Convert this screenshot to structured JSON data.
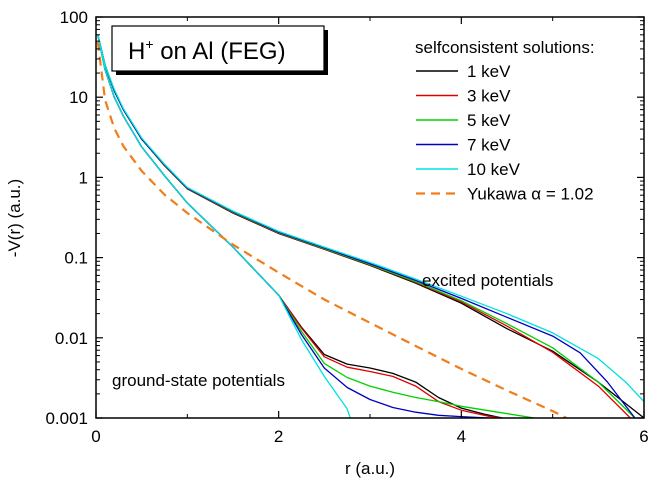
{
  "chart_data": {
    "type": "line",
    "title": "",
    "annotation_box": {
      "main": "H",
      "superscript": "+",
      "rest": " on Al (FEG)"
    },
    "xlabel": "r (a.u.)",
    "ylabel": "-V(r) (a.u.)",
    "xlim": [
      0,
      6
    ],
    "ylim": [
      0.001,
      100
    ],
    "yscale": "log",
    "x_ticks": [
      0,
      2,
      4,
      6
    ],
    "x_tick_labels": [
      "0",
      "2",
      "4",
      "6"
    ],
    "y_ticks": [
      100,
      10,
      1,
      0.1,
      0.01,
      0.001
    ],
    "y_tick_labels": [
      "100",
      "10",
      "1",
      "0.1",
      "0.01",
      "0.001"
    ],
    "grid": false,
    "legend_title": "selfconsistent solutions:",
    "legend_position": "top-right",
    "annotations": [
      {
        "text": "excited potentials"
      },
      {
        "text": "ground-state potentials"
      }
    ],
    "series": [
      {
        "name": "1 keV",
        "color": "#000000",
        "dash": false,
        "excited": [
          [
            0.02,
            60
          ],
          [
            0.1,
            25
          ],
          [
            0.2,
            12
          ],
          [
            0.3,
            7
          ],
          [
            0.5,
            3
          ],
          [
            0.75,
            1.4
          ],
          [
            1,
            0.72
          ],
          [
            1.5,
            0.36
          ],
          [
            2,
            0.2
          ],
          [
            2.5,
            0.127
          ],
          [
            3,
            0.08
          ],
          [
            3.5,
            0.048
          ],
          [
            4,
            0.027
          ],
          [
            4.5,
            0.013
          ],
          [
            5,
            0.0068
          ],
          [
            5.5,
            0.0028
          ],
          [
            6,
            0.001
          ]
        ],
        "ground": [
          [
            0.02,
            60
          ],
          [
            0.1,
            22
          ],
          [
            0.2,
            10
          ],
          [
            0.3,
            5.8
          ],
          [
            0.5,
            2.4
          ],
          [
            0.75,
            1.05
          ],
          [
            1,
            0.48
          ],
          [
            1.5,
            0.135
          ],
          [
            2,
            0.034
          ],
          [
            2.25,
            0.0135
          ],
          [
            2.5,
            0.0062
          ],
          [
            2.75,
            0.0047
          ],
          [
            3,
            0.0042
          ],
          [
            3.25,
            0.0036
          ],
          [
            3.5,
            0.0028
          ],
          [
            3.75,
            0.0018
          ],
          [
            4,
            0.00133
          ],
          [
            4.25,
            0.00112
          ],
          [
            4.45,
            0.001
          ]
        ]
      },
      {
        "name": "3 keV",
        "color": "#e00000",
        "dash": false,
        "excited": [
          [
            0.02,
            60
          ],
          [
            0.1,
            25
          ],
          [
            0.2,
            12
          ],
          [
            0.3,
            7
          ],
          [
            0.5,
            3
          ],
          [
            0.75,
            1.42
          ],
          [
            1,
            0.73
          ],
          [
            1.5,
            0.365
          ],
          [
            2,
            0.202
          ],
          [
            2.5,
            0.128
          ],
          [
            3,
            0.081
          ],
          [
            3.5,
            0.049
          ],
          [
            4,
            0.028
          ],
          [
            4.5,
            0.014
          ],
          [
            5,
            0.0066
          ],
          [
            5.5,
            0.0025
          ],
          [
            5.85,
            0.001
          ]
        ],
        "ground": [
          [
            0.02,
            60
          ],
          [
            0.1,
            22
          ],
          [
            0.2,
            10
          ],
          [
            0.3,
            5.8
          ],
          [
            0.5,
            2.4
          ],
          [
            0.75,
            1.05
          ],
          [
            1,
            0.48
          ],
          [
            1.5,
            0.135
          ],
          [
            2,
            0.034
          ],
          [
            2.25,
            0.0132
          ],
          [
            2.5,
            0.0058
          ],
          [
            2.75,
            0.0043
          ],
          [
            3,
            0.0038
          ],
          [
            3.25,
            0.0033
          ],
          [
            3.5,
            0.0025
          ],
          [
            3.75,
            0.0016
          ],
          [
            4,
            0.00125
          ],
          [
            4.3,
            0.00105
          ],
          [
            4.45,
            0.001
          ]
        ]
      },
      {
        "name": "5 keV",
        "color": "#00d000",
        "dash": false,
        "excited": [
          [
            0.02,
            60
          ],
          [
            0.1,
            25
          ],
          [
            0.2,
            12
          ],
          [
            0.3,
            7
          ],
          [
            0.5,
            3
          ],
          [
            0.75,
            1.43
          ],
          [
            1,
            0.735
          ],
          [
            1.5,
            0.37
          ],
          [
            2,
            0.205
          ],
          [
            2.5,
            0.13
          ],
          [
            3,
            0.082
          ],
          [
            3.5,
            0.05
          ],
          [
            4,
            0.029
          ],
          [
            4.5,
            0.015
          ],
          [
            5,
            0.0075
          ],
          [
            5.5,
            0.0028
          ],
          [
            5.9,
            0.001
          ]
        ],
        "ground": [
          [
            0.02,
            60
          ],
          [
            0.1,
            22
          ],
          [
            0.2,
            10
          ],
          [
            0.3,
            5.8
          ],
          [
            0.5,
            2.4
          ],
          [
            0.75,
            1.05
          ],
          [
            1,
            0.48
          ],
          [
            1.5,
            0.135
          ],
          [
            2,
            0.034
          ],
          [
            2.25,
            0.012
          ],
          [
            2.5,
            0.0048
          ],
          [
            2.75,
            0.0032
          ],
          [
            3,
            0.0025
          ],
          [
            3.25,
            0.0021
          ],
          [
            3.5,
            0.0018
          ],
          [
            3.75,
            0.0016
          ],
          [
            4,
            0.0014
          ],
          [
            4.4,
            0.00118
          ],
          [
            4.8,
            0.001
          ]
        ]
      },
      {
        "name": "7 keV",
        "color": "#0000c0",
        "dash": false,
        "excited": [
          [
            0.02,
            60
          ],
          [
            0.1,
            25
          ],
          [
            0.2,
            12
          ],
          [
            0.3,
            7
          ],
          [
            0.5,
            3
          ],
          [
            0.75,
            1.44
          ],
          [
            1,
            0.74
          ],
          [
            1.5,
            0.375
          ],
          [
            2,
            0.208
          ],
          [
            2.5,
            0.132
          ],
          [
            3,
            0.084
          ],
          [
            3.5,
            0.052
          ],
          [
            4,
            0.031
          ],
          [
            4.5,
            0.018
          ],
          [
            5,
            0.0105
          ],
          [
            5.3,
            0.0065
          ],
          [
            5.6,
            0.0028
          ],
          [
            5.9,
            0.001
          ]
        ],
        "ground": [
          [
            0.02,
            60
          ],
          [
            0.1,
            22
          ],
          [
            0.2,
            10
          ],
          [
            0.3,
            5.8
          ],
          [
            0.5,
            2.4
          ],
          [
            0.75,
            1.05
          ],
          [
            1,
            0.48
          ],
          [
            1.5,
            0.135
          ],
          [
            2,
            0.034
          ],
          [
            2.25,
            0.011
          ],
          [
            2.5,
            0.0042
          ],
          [
            2.75,
            0.0024
          ],
          [
            3,
            0.0017
          ],
          [
            3.25,
            0.00135
          ],
          [
            3.5,
            0.00118
          ],
          [
            3.75,
            0.00108
          ],
          [
            4,
            0.00104
          ],
          [
            4.3,
            0.001
          ]
        ]
      },
      {
        "name": "10 keV",
        "color": "#00e0e0",
        "dash": false,
        "excited": [
          [
            0.02,
            60
          ],
          [
            0.1,
            25
          ],
          [
            0.2,
            12.5
          ],
          [
            0.3,
            7.2
          ],
          [
            0.5,
            3.1
          ],
          [
            0.75,
            1.46
          ],
          [
            1,
            0.75
          ],
          [
            1.5,
            0.38
          ],
          [
            2,
            0.212
          ],
          [
            2.5,
            0.135
          ],
          [
            3,
            0.087
          ],
          [
            3.5,
            0.054
          ],
          [
            4,
            0.033
          ],
          [
            4.5,
            0.02
          ],
          [
            5,
            0.0115
          ],
          [
            5.5,
            0.0055
          ],
          [
            5.8,
            0.0028
          ],
          [
            6,
            0.0016
          ]
        ],
        "ground": [
          [
            0.02,
            60
          ],
          [
            0.1,
            22
          ],
          [
            0.2,
            10
          ],
          [
            0.3,
            5.8
          ],
          [
            0.5,
            2.4
          ],
          [
            0.75,
            1.05
          ],
          [
            1,
            0.48
          ],
          [
            1.5,
            0.135
          ],
          [
            2,
            0.034
          ],
          [
            2.25,
            0.0095
          ],
          [
            2.5,
            0.0033
          ],
          [
            2.75,
            0.0013
          ],
          [
            2.85,
            0.0006
          ]
        ]
      },
      {
        "name": "Yukawa α = 1.02",
        "color": "#f07d1a",
        "dash": true,
        "points": [
          [
            0.02,
            49
          ],
          [
            0.1,
            9.2
          ],
          [
            0.2,
            4.1
          ],
          [
            0.3,
            2.45
          ],
          [
            0.5,
            1.2
          ],
          [
            0.75,
            0.61
          ],
          [
            1,
            0.36
          ],
          [
            1.5,
            0.145
          ],
          [
            2,
            0.065
          ],
          [
            2.5,
            0.03
          ],
          [
            3,
            0.0154
          ],
          [
            3.5,
            0.0079
          ],
          [
            4,
            0.0041
          ],
          [
            4.5,
            0.0022
          ],
          [
            5,
            0.00122
          ],
          [
            5.15,
            0.001
          ]
        ]
      }
    ]
  }
}
